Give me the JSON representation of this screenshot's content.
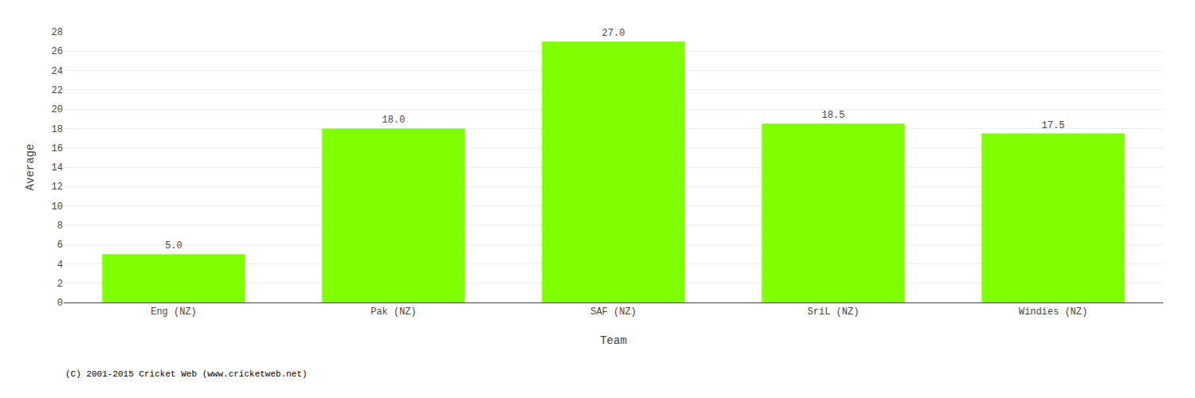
{
  "chart_data": {
    "type": "bar",
    "xlabel": "Team",
    "ylabel": "Average",
    "categories": [
      "Eng (NZ)",
      "Pak (NZ)",
      "SAF (NZ)",
      "SriL (NZ)",
      "Windies (NZ)"
    ],
    "values": [
      5.0,
      18.0,
      27.0,
      18.5,
      17.5
    ],
    "value_labels": [
      "5.0",
      "18.0",
      "27.0",
      "18.5",
      "17.5"
    ],
    "data_labels": true,
    "color": "#7FFF00",
    "ylim": [
      0,
      28
    ],
    "yticks": [
      0,
      2,
      4,
      6,
      8,
      10,
      12,
      14,
      16,
      18,
      20,
      22,
      24,
      26,
      28
    ],
    "grid": true,
    "annotations": [
      "(C) 2001-2015 Cricket Web (www.cricketweb.net)"
    ]
  }
}
